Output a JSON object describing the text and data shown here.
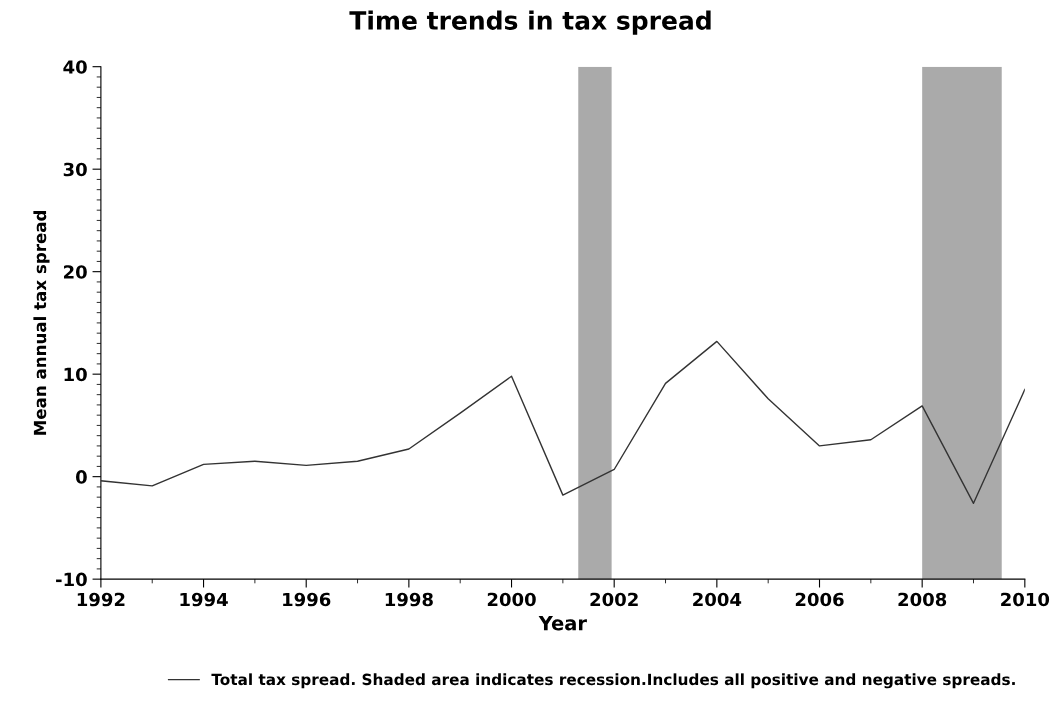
{
  "chart_data": {
    "type": "line",
    "title": "Time trends in tax spread",
    "xlabel": "Year",
    "ylabel": "Mean annual tax spread",
    "x": [
      1992,
      1993,
      1994,
      1995,
      1996,
      1997,
      1998,
      1999,
      2000,
      2001,
      2002,
      2003,
      2004,
      2005,
      2006,
      2007,
      2008,
      2009,
      2010
    ],
    "series": [
      {
        "name": "Total tax spread. Shaded area indicates recession.Includes all positive and negative spreads.",
        "color": "#333333",
        "values": [
          -0.4,
          -0.9,
          1.2,
          1.5,
          1.1,
          1.5,
          2.7,
          6.2,
          9.8,
          -1.8,
          0.7,
          9.1,
          13.2,
          7.6,
          3.0,
          3.6,
          6.9,
          -2.6,
          8.5
        ]
      }
    ],
    "bands": [
      {
        "axis": "x",
        "from": 2001.3,
        "to": 2001.95,
        "color": "#aaaaaa"
      },
      {
        "axis": "x",
        "from": 2008.0,
        "to": 2009.55,
        "color": "#aaaaaa"
      }
    ],
    "xlim": [
      1992,
      2010
    ],
    "xticks": [
      1992,
      1994,
      1996,
      1998,
      2000,
      2002,
      2004,
      2006,
      2008,
      2010
    ],
    "ylim": [
      -10,
      40
    ],
    "yticks": [
      -10,
      0,
      10,
      20,
      30,
      40
    ],
    "grid": false,
    "legend": "bottom",
    "marker": "none",
    "line_style": "solid"
  }
}
